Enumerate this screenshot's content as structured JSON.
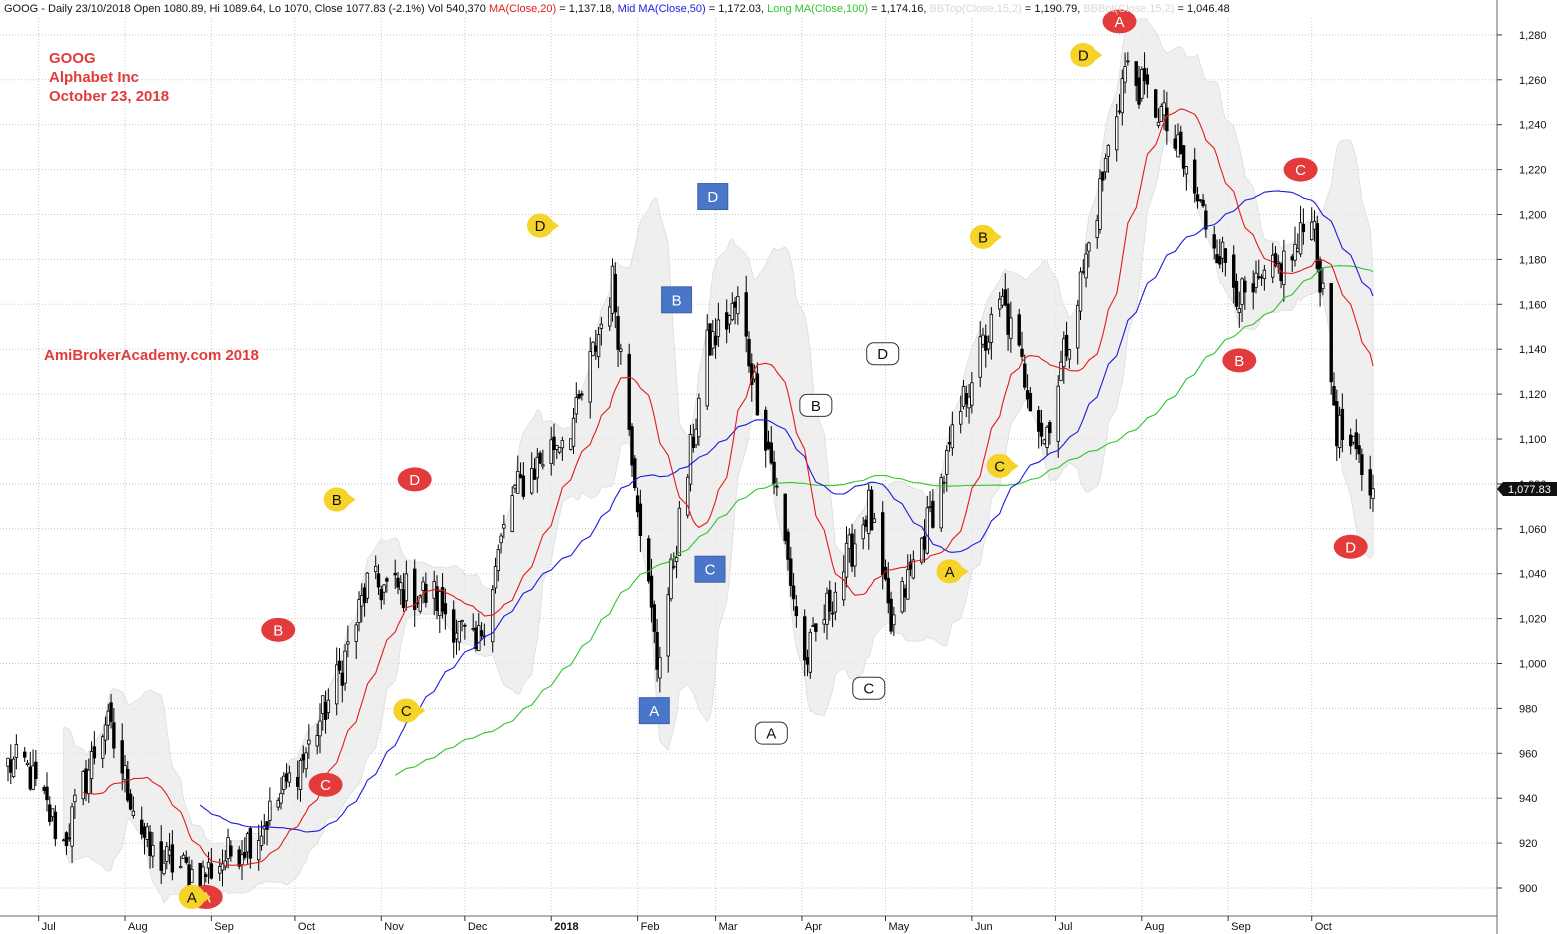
{
  "header": {
    "prefix": "GOOG - Daily 23/10/2018 Open 1080.89, Hi 1089.64, Lo 1070, Close 1077.83 (-2.1%) Vol 540,370 ",
    "ma20_label": "MA(Close,20)",
    "ma20_value": " = 1,137.18, ",
    "ma50_label": "Mid MA(Close,50)",
    "ma50_value": " = 1,172.03, ",
    "ma100_label": "Long MA(Close,100)",
    "ma100_value": " = 1,174.16, ",
    "bbtop_label": "BBTop(Close,15,2)",
    "bbtop_value": " = 1,190.79, ",
    "bbbot_label": "BBBot(Close,15,2)",
    "bbbot_value": " = 1,046.48"
  },
  "notes": {
    "ticker": "GOOG",
    "company": "Alphabet Inc",
    "date": "October 23, 2018",
    "site": "AmiBrokerAcademy.com  2018"
  },
  "colors": {
    "ma20": "#e31b1b",
    "ma50": "#1a1adf",
    "ma100": "#2fc52f",
    "bb_band": "#e9e9e9",
    "marker_red": "#e33b3b",
    "marker_yellow": "#f5d328",
    "marker_blue": "#4a76c8",
    "marker_white": "#ffffff",
    "last_price_bg": "#111111"
  },
  "chart_data": {
    "type": "candlestick",
    "ylim": [
      885,
      1290
    ],
    "y_ticks": [
      900,
      920,
      940,
      960,
      980,
      1000,
      1020,
      1040,
      1060,
      1080,
      1100,
      1120,
      1140,
      1160,
      1180,
      1200,
      1220,
      1240,
      1260,
      1280
    ],
    "x_labels": [
      "Jul",
      "Aug",
      "Sep",
      "Oct",
      "Nov",
      "Dec",
      "2018",
      "Feb",
      "Mar",
      "Apr",
      "May",
      "Jun",
      "Jul",
      "Aug",
      "Sep",
      "Oct"
    ],
    "last_price": "1,077.83",
    "grid": true,
    "price_anchors": [
      {
        "date": "2017-06-26",
        "close": 955
      },
      {
        "date": "2017-07-10",
        "close": 920
      },
      {
        "date": "2017-07-25",
        "close": 975
      },
      {
        "date": "2017-08-10",
        "close": 915
      },
      {
        "date": "2017-08-28",
        "close": 905
      },
      {
        "date": "2017-09-18",
        "close": 925
      },
      {
        "date": "2017-10-05",
        "close": 960
      },
      {
        "date": "2017-10-17",
        "close": 995
      },
      {
        "date": "2017-10-27",
        "close": 1035
      },
      {
        "date": "2017-11-20",
        "close": 1030
      },
      {
        "date": "2017-12-05",
        "close": 1005
      },
      {
        "date": "2017-12-18",
        "close": 1075
      },
      {
        "date": "2018-01-10",
        "close": 1110
      },
      {
        "date": "2018-01-23",
        "close": 1170
      },
      {
        "date": "2018-02-08",
        "close": 1000
      },
      {
        "date": "2018-02-26",
        "close": 1140
      },
      {
        "date": "2018-03-09",
        "close": 1160
      },
      {
        "date": "2018-03-21",
        "close": 1090
      },
      {
        "date": "2018-04-02",
        "close": 1000
      },
      {
        "date": "2018-04-25",
        "close": 1070
      },
      {
        "date": "2018-05-03",
        "close": 1015
      },
      {
        "date": "2018-05-21",
        "close": 1080
      },
      {
        "date": "2018-06-01",
        "close": 1130
      },
      {
        "date": "2018-06-12",
        "close": 1160
      },
      {
        "date": "2018-06-27",
        "close": 1100
      },
      {
        "date": "2018-07-12",
        "close": 1180
      },
      {
        "date": "2018-07-26",
        "close": 1265
      },
      {
        "date": "2018-08-08",
        "close": 1245
      },
      {
        "date": "2018-08-23",
        "close": 1200
      },
      {
        "date": "2018-09-07",
        "close": 1160
      },
      {
        "date": "2018-09-26",
        "close": 1185
      },
      {
        "date": "2018-10-01",
        "close": 1205
      },
      {
        "date": "2018-10-10",
        "close": 1105
      },
      {
        "date": "2018-10-23",
        "close": 1078
      }
    ],
    "series": [
      {
        "name": "MA(Close,20)"
      },
      {
        "name": "Mid MA(Close,50)"
      },
      {
        "name": "Long MA(Close,100)"
      },
      {
        "name": "BBTop(Close,15,2)"
      },
      {
        "name": "BBBot(Close,15,2)"
      }
    ],
    "markers": [
      {
        "label": "A",
        "style": "red-oval",
        "date": "2017-08-30",
        "price": 896
      },
      {
        "label": "A",
        "style": "yellow-pointer",
        "date": "2017-08-25",
        "price": 896
      },
      {
        "label": "B",
        "style": "red-oval",
        "date": "2017-09-25",
        "price": 1015
      },
      {
        "label": "B",
        "style": "yellow-pointer",
        "date": "2017-10-16",
        "price": 1073
      },
      {
        "label": "C",
        "style": "red-oval",
        "date": "2017-10-12",
        "price": 946
      },
      {
        "label": "C",
        "style": "yellow-pointer",
        "date": "2017-11-10",
        "price": 979
      },
      {
        "label": "D",
        "style": "red-oval",
        "date": "2017-11-13",
        "price": 1082
      },
      {
        "label": "D",
        "style": "yellow-pointer",
        "date": "2017-12-28",
        "price": 1195
      },
      {
        "label": "A",
        "style": "blue-square",
        "date": "2018-02-07",
        "price": 979
      },
      {
        "label": "B",
        "style": "blue-square",
        "date": "2018-02-15",
        "price": 1162
      },
      {
        "label": "C",
        "style": "blue-square",
        "date": "2018-02-27",
        "price": 1042
      },
      {
        "label": "D",
        "style": "blue-square",
        "date": "2018-02-28",
        "price": 1208
      },
      {
        "label": "A",
        "style": "white-rounded",
        "date": "2018-03-21",
        "price": 969
      },
      {
        "label": "B",
        "style": "white-rounded",
        "date": "2018-04-06",
        "price": 1115
      },
      {
        "label": "C",
        "style": "white-rounded",
        "date": "2018-04-25",
        "price": 989
      },
      {
        "label": "D",
        "style": "white-rounded",
        "date": "2018-04-30",
        "price": 1138
      },
      {
        "label": "A",
        "style": "yellow-pointer",
        "date": "2018-05-24",
        "price": 1041
      },
      {
        "label": "B",
        "style": "yellow-pointer",
        "date": "2018-06-05",
        "price": 1190
      },
      {
        "label": "C",
        "style": "yellow-pointer",
        "date": "2018-06-11",
        "price": 1088
      },
      {
        "label": "D",
        "style": "yellow-pointer",
        "date": "2018-07-11",
        "price": 1271
      },
      {
        "label": "A",
        "style": "red-oval",
        "date": "2018-07-24",
        "price": 1286
      },
      {
        "label": "B",
        "style": "red-oval",
        "date": "2018-09-05",
        "price": 1135
      },
      {
        "label": "C",
        "style": "red-oval",
        "date": "2018-09-27",
        "price": 1220
      },
      {
        "label": "D",
        "style": "red-oval",
        "date": "2018-10-15",
        "price": 1052
      }
    ]
  }
}
